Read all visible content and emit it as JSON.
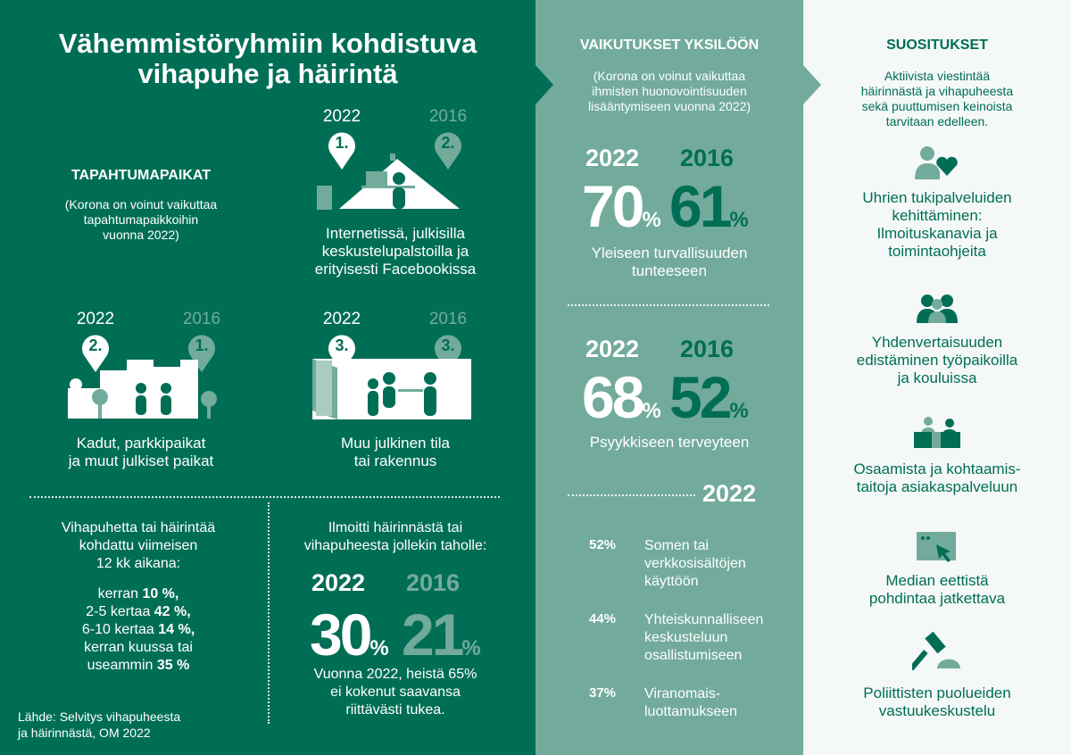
{
  "colors": {
    "dark_green": "#006e55",
    "teal": "#72ab9c",
    "light": "#f4f8f7",
    "white": "#ffffff"
  },
  "title": [
    "Vähemmistöryhmiin kohdistuva",
    "vihapuhe ja häirintä"
  ],
  "places": {
    "heading": "TAPAHTUMAPAIKAT",
    "note": [
      "(Korona on voinut vaikuttaa",
      "tapahtumapaikkoihin",
      "vuonna 2022)"
    ],
    "items": [
      {
        "year_a": "2022",
        "rank_a": "1.",
        "year_b": "2016",
        "rank_b": "2.",
        "icon": "office-desk-illustration",
        "label": [
          "Internetissä, julkisilla",
          "keskustelupalstoilla ja",
          "erityisesti Facebookissa"
        ]
      },
      {
        "year_a": "2022",
        "rank_a": "2.",
        "year_b": "2016",
        "rank_b": "1.",
        "icon": "street-illustration",
        "label": [
          "Kadut, parkkipaikat",
          "ja muut julkiset paikat"
        ]
      },
      {
        "year_a": "2022",
        "rank_a": "3.",
        "year_b": "2016",
        "rank_b": "3.",
        "icon": "public-building-illustration",
        "label": [
          "Muu julkinen tila",
          "tai rakennus"
        ]
      }
    ]
  },
  "frequency": {
    "intro": [
      "Vihapuhetta tai häirintää",
      "kohdattu viimeisen",
      "12 kk aikana:"
    ],
    "rows": [
      {
        "text": "kerran ",
        "value": "10 %,"
      },
      {
        "text": "2-5 kertaa  ",
        "value": "42 %,"
      },
      {
        "text": "6-10 kertaa ",
        "value": "14 %,"
      },
      {
        "text": "kerran kuussa tai",
        "value": ""
      },
      {
        "text": "useammin ",
        "value": "35 %"
      }
    ]
  },
  "source": [
    "Lähde: Selvitys vihapuheesta",
    "ja häirinnästä, OM 2022"
  ],
  "reported": {
    "intro": [
      "Ilmoitti häirinnästä tai",
      "vihapuheesta jollekin taholle:"
    ],
    "year_a": "2022",
    "value_a": "30",
    "year_b": "2016",
    "value_b": "21",
    "unit": "%",
    "note": [
      "Vuonna 2022, heistä 65%",
      "ei kokenut saavansa",
      "riittävästi tukea."
    ]
  },
  "effects": {
    "heading": "VAIKUTUKSET YKSILÖÖN",
    "note": [
      "(Korona on voinut vaikuttaa",
      "ihmisten huonovointisuuden",
      "lisääntymiseen vuonna 2022)"
    ],
    "stats": [
      {
        "year_a": "2022",
        "value_a": "70",
        "year_b": "2016",
        "value_b": "61",
        "unit": "%",
        "label": [
          "Yleiseen turvallisuuden",
          "tunteeseen"
        ]
      },
      {
        "year_a": "2022",
        "value_a": "68",
        "year_b": "2016",
        "value_b": "52",
        "unit": "%",
        "label": [
          "Psyykkiseen terveyteen"
        ]
      }
    ],
    "year": "2022",
    "list": [
      {
        "value": "52%",
        "label": [
          "Somen tai",
          "verkkosisältöjen",
          "käyttöön"
        ]
      },
      {
        "value": "44%",
        "label": [
          "Yhteiskunnalliseen",
          "keskusteluun",
          "osallistumiseen"
        ]
      },
      {
        "value": "37%",
        "label": [
          "Viranomais-",
          "luottamukseen"
        ]
      }
    ]
  },
  "recommendations": {
    "heading": "SUOSITUKSET",
    "intro": [
      "Aktiivista viestintää",
      "häirinnästä ja vihapuheesta",
      "sekä puuttumisen keinoista",
      "tarvitaan edelleen."
    ],
    "items": [
      {
        "icon": "person-heart-icon",
        "label": [
          "Uhrien tukipalveluiden",
          "kehittäminen:",
          "Ilmoituskanavia ja",
          "toimintaohjeita"
        ]
      },
      {
        "icon": "group-icon",
        "label": [
          "Yhdenvertaisuuden",
          "edistäminen työpaikoilla",
          "ja kouluissa"
        ]
      },
      {
        "icon": "service-desk-icon",
        "label": [
          "Osaamista ja kohtaamis-",
          "taitoja asiakaspalveluun"
        ]
      },
      {
        "icon": "screen-cursor-icon",
        "label": [
          "Median eettistä",
          "pohdintaa jatkettava"
        ]
      },
      {
        "icon": "gavel-icon",
        "label": [
          "Poliittisten puolueiden",
          "vastuukeskustelu"
        ]
      }
    ]
  }
}
